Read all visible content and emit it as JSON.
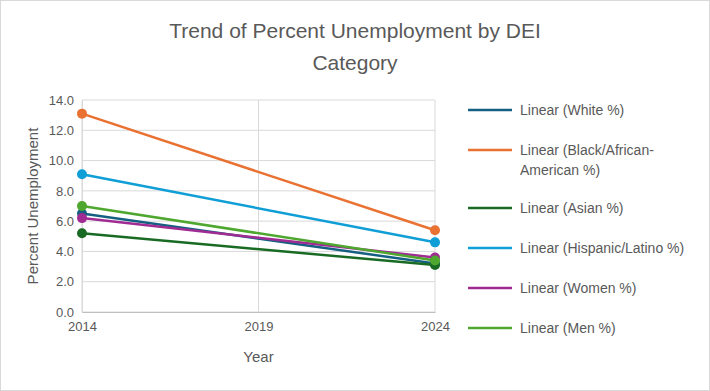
{
  "chart_data": {
    "type": "line",
    "title": "Trend of Percent Unemployment by DEI Category",
    "x_label": "Year",
    "y_label": "Percent Unemployment",
    "x": [
      2014,
      2024
    ],
    "series": [
      {
        "name": "Linear (White %)",
        "color": "#156082",
        "values": [
          6.5,
          3.2
        ]
      },
      {
        "name": "Linear (Black/African-American %)",
        "color": "#e97132",
        "values": [
          13.1,
          5.4
        ]
      },
      {
        "name": "Linear (Asian %)",
        "color": "#196b24",
        "values": [
          5.2,
          3.1
        ]
      },
      {
        "name": "Linear (Hispanic/Latino %)",
        "color": "#0f9ed5",
        "values": [
          9.1,
          4.6
        ]
      },
      {
        "name": "Linear (Women %)",
        "color": "#a02b93",
        "values": [
          6.2,
          3.6
        ]
      },
      {
        "name": "Linear (Men %)",
        "color": "#4ea72e",
        "values": [
          7.0,
          3.4
        ]
      }
    ],
    "xlim": [
      2014,
      2024
    ],
    "xticks": [
      2014,
      2019,
      2024
    ],
    "ylim": [
      0,
      14
    ],
    "yticks": [
      {
        "value": 0,
        "label": "0.0"
      },
      {
        "value": 2,
        "label": "2.0"
      },
      {
        "value": 4,
        "label": "4.0"
      },
      {
        "value": 6,
        "label": "6.0"
      },
      {
        "value": 8,
        "label": "8.0"
      },
      {
        "value": 10,
        "label": "10.0"
      },
      {
        "value": 12,
        "label": "12.0"
      },
      {
        "value": 14,
        "label": "14.0"
      }
    ],
    "grid": true,
    "marker": "circle",
    "legend": "right"
  }
}
